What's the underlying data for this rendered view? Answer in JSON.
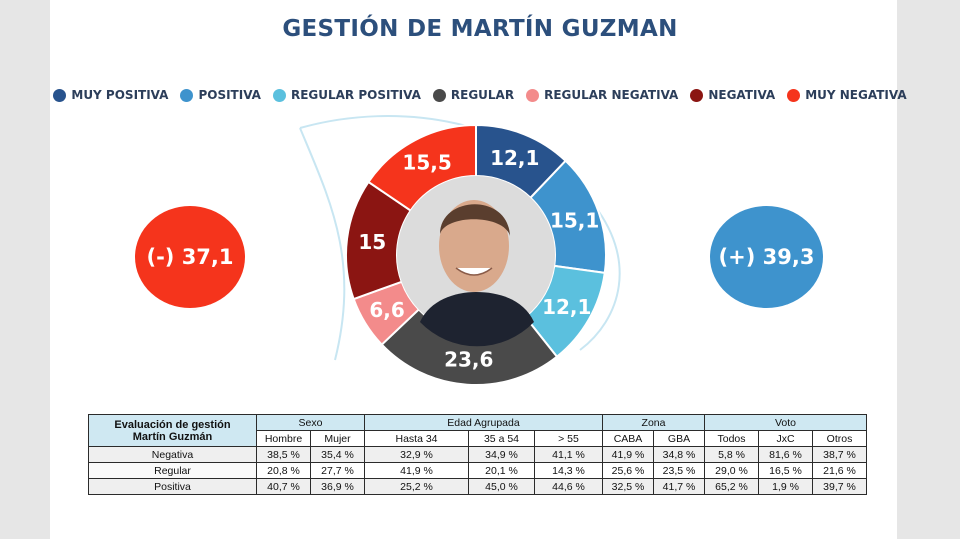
{
  "title": "GESTIÓN DE MARTÍN GUZMAN",
  "legend": [
    {
      "label": "MUY POSITIVA",
      "color": "#28538d"
    },
    {
      "label": "POSITIVA",
      "color": "#3e93cd"
    },
    {
      "label": "REGULAR POSITIVA",
      "color": "#5bc0de"
    },
    {
      "label": "REGULAR",
      "color": "#4a4a4a"
    },
    {
      "label": "REGULAR NEGATIVA",
      "color": "#f38b8b"
    },
    {
      "label": "NEGATIVA",
      "color": "#8b1512"
    },
    {
      "label": "MUY NEGATIVA",
      "color": "#f5341c"
    }
  ],
  "totals": {
    "negative": "(-) 37,1",
    "positive": "(+) 39,3"
  },
  "chart_data": {
    "type": "pie",
    "categories": [
      "MUY POSITIVA",
      "POSITIVA",
      "REGULAR POSITIVA",
      "REGULAR",
      "REGULAR NEGATIVA",
      "NEGATIVA",
      "MUY NEGATIVA"
    ],
    "values": [
      12.1,
      15.1,
      12.1,
      23.6,
      6.6,
      15,
      15.5
    ],
    "labels": [
      "12,1",
      "15,1",
      "12,1",
      "23,6",
      "6,6",
      "15",
      "15,5"
    ],
    "colors": [
      "#28538d",
      "#3e93cd",
      "#5bc0de",
      "#4a4a4a",
      "#f38b8b",
      "#8b1512",
      "#f5341c"
    ],
    "donut": true,
    "center": "photo"
  },
  "table": {
    "corner_line1": "Evaluación de gestión",
    "corner_line2": "Martín Guzmán",
    "groups": [
      "Sexo",
      "Edad Agrupada",
      "Zona",
      "Voto"
    ],
    "columns": [
      "Hombre",
      "Mujer",
      "Hasta 34",
      "35 a 54",
      "> 55",
      "CABA",
      "GBA",
      "Todos",
      "JxC",
      "Otros"
    ],
    "rows": [
      {
        "label": "Negativa",
        "values": [
          "38,5 %",
          "35,4 %",
          "32,9 %",
          "34,9 %",
          "41,1 %",
          "41,9 %",
          "34,8 %",
          "5,8 %",
          "81,6 %",
          "38,7 %"
        ]
      },
      {
        "label": "Regular",
        "values": [
          "20,8 %",
          "27,7 %",
          "41,9 %",
          "20,1 %",
          "14,3 %",
          "25,6 %",
          "23,5 %",
          "29,0 %",
          "16,5 %",
          "21,6 %"
        ]
      },
      {
        "label": "Positiva",
        "values": [
          "40,7 %",
          "36,9 %",
          "25,2 %",
          "45,0 %",
          "44,6 %",
          "32,5 %",
          "41,7 %",
          "65,2 %",
          "1,9 %",
          "39,7 %"
        ]
      }
    ]
  }
}
